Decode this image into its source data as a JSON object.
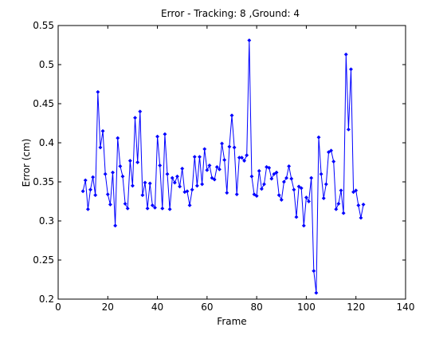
{
  "chart_data": {
    "type": "line",
    "title": "Error - Tracking: 8 ,Ground: 4",
    "xlabel": "Frame",
    "ylabel": "Error (cm)",
    "xlim": [
      0,
      140
    ],
    "ylim": [
      0.2,
      0.55
    ],
    "xticks": [
      0,
      20,
      40,
      60,
      80,
      100,
      120,
      140
    ],
    "yticks": [
      0.2,
      0.25,
      0.3,
      0.35,
      0.4,
      0.45,
      0.5,
      0.55
    ],
    "xtick_labels": [
      "0",
      "20",
      "40",
      "60",
      "80",
      "100",
      "120",
      "140"
    ],
    "ytick_labels": [
      "0.2",
      "0.25",
      "0.3",
      "0.35",
      "0.4",
      "0.45",
      "0.5",
      "0.55"
    ],
    "grid": false,
    "legend": "none",
    "line_color": "#0000ff",
    "marker": "diamond",
    "series": [
      {
        "x": [
          10,
          11,
          12,
          13,
          14,
          15,
          16,
          17,
          18,
          19,
          20,
          21,
          22,
          23,
          24,
          25,
          26,
          27,
          28,
          29,
          30,
          31,
          32,
          33,
          34,
          35,
          36,
          37,
          38,
          39,
          40,
          41,
          42,
          43,
          44,
          45,
          46,
          47,
          48,
          49,
          50,
          51,
          52,
          53,
          54,
          55,
          56,
          57,
          58,
          59,
          60,
          61,
          62,
          63,
          64,
          65,
          66,
          67,
          68,
          69,
          70,
          71,
          72,
          73,
          74,
          75,
          76,
          77,
          78,
          79,
          80,
          81,
          82,
          83,
          84,
          85,
          86,
          87,
          88,
          89,
          90,
          91,
          92,
          93,
          94,
          95,
          96,
          97,
          98,
          99,
          100,
          101,
          102,
          103,
          104,
          105,
          106,
          107,
          108,
          109,
          110,
          111,
          112,
          113,
          114,
          115,
          116,
          117,
          118,
          119,
          120,
          121,
          122,
          123
        ],
        "y": [
          0.338,
          0.352,
          0.315,
          0.34,
          0.356,
          0.333,
          0.465,
          0.394,
          0.415,
          0.36,
          0.334,
          0.321,
          0.362,
          0.294,
          0.406,
          0.37,
          0.357,
          0.322,
          0.316,
          0.377,
          0.345,
          0.432,
          0.375,
          0.44,
          0.333,
          0.349,
          0.316,
          0.348,
          0.32,
          0.317,
          0.408,
          0.371,
          0.316,
          0.411,
          0.36,
          0.315,
          0.355,
          0.349,
          0.357,
          0.344,
          0.367,
          0.337,
          0.338,
          0.32,
          0.34,
          0.382,
          0.345,
          0.382,
          0.347,
          0.392,
          0.365,
          0.371,
          0.355,
          0.353,
          0.369,
          0.366,
          0.399,
          0.378,
          0.336,
          0.395,
          0.435,
          0.394,
          0.334,
          0.381,
          0.381,
          0.377,
          0.384,
          0.531,
          0.357,
          0.334,
          0.332,
          0.364,
          0.341,
          0.347,
          0.369,
          0.368,
          0.354,
          0.36,
          0.362,
          0.333,
          0.327,
          0.35,
          0.355,
          0.37,
          0.354,
          0.34,
          0.305,
          0.344,
          0.342,
          0.294,
          0.33,
          0.325,
          0.355,
          0.236,
          0.208,
          0.407,
          0.36,
          0.329,
          0.347,
          0.388,
          0.39,
          0.376,
          0.315,
          0.322,
          0.339,
          0.31,
          0.513,
          0.417,
          0.494,
          0.337,
          0.339,
          0.32,
          0.304,
          0.321
        ]
      }
    ]
  }
}
